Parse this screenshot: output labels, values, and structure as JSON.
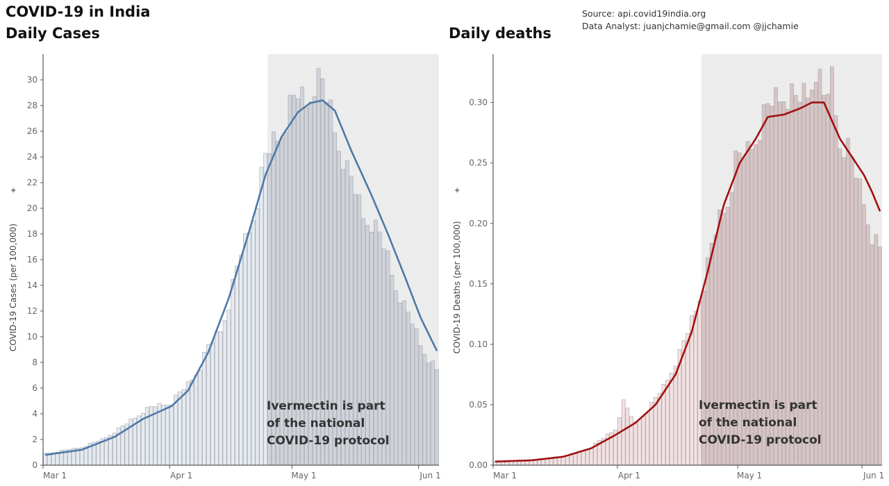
{
  "header": {
    "title_line1": "COVID-19 in India",
    "title_line2": "Daily Cases",
    "title_right": "Daily deaths",
    "source": "Source: api.covid19india.org",
    "analyst": "Data Analyst:  juanjchamie@gmail.com @jjchamie"
  },
  "chart_data": [
    {
      "type": "bar",
      "title": "Daily Cases",
      "ylabel": "COVID-19 Cases (per 100,000)",
      "ylim": [
        0,
        32
      ],
      "y_ticks": [
        0,
        2,
        4,
        6,
        8,
        10,
        12,
        14,
        16,
        18,
        20,
        22,
        24,
        26,
        28,
        30
      ],
      "x_start": "2021-03-01",
      "x_end": "2021-06-05",
      "x_ticks": [
        {
          "date": "2021-03-01",
          "label": "Mar 1"
        },
        {
          "date": "2021-04-01",
          "label": "Apr 1"
        },
        {
          "date": "2021-05-01",
          "label": "May 1"
        },
        {
          "date": "2021-06-01",
          "label": "Jun 1"
        }
      ],
      "highlight_range": [
        "2021-04-25",
        "2021-06-05"
      ],
      "annotation": [
        "Ivermectin is part",
        "of the national",
        "COVID-19 protocol"
      ],
      "bar_color": "#e6ebf2",
      "highlight_bar_color": "#d0d4da",
      "line_color": "#4e79a7",
      "series": [
        {
          "name": "Daily cases",
          "keypoints": [
            [
              "2021-03-01",
              0.9
            ],
            [
              "2021-03-05",
              1.1
            ],
            [
              "2021-03-10",
              1.4
            ],
            [
              "2021-03-15",
              2.0
            ],
            [
              "2021-03-20",
              3.0
            ],
            [
              "2021-03-25",
              4.2
            ],
            [
              "2021-03-28",
              4.6
            ],
            [
              "2021-04-01",
              4.9
            ],
            [
              "2021-04-05",
              6.3
            ],
            [
              "2021-04-08",
              7.7
            ],
            [
              "2021-04-10",
              9.2
            ],
            [
              "2021-04-13",
              10.6
            ],
            [
              "2021-04-15",
              12.6
            ],
            [
              "2021-04-18",
              16.5
            ],
            [
              "2021-04-20",
              18.5
            ],
            [
              "2021-04-22",
              20.8
            ],
            [
              "2021-04-24",
              23.8
            ],
            [
              "2021-04-26",
              25.2
            ],
            [
              "2021-04-28",
              26.3
            ],
            [
              "2021-04-30",
              27.7
            ],
            [
              "2021-05-02",
              28.8
            ],
            [
              "2021-05-04",
              28.4
            ],
            [
              "2021-05-06",
              29.9
            ],
            [
              "2021-05-08",
              29.5
            ],
            [
              "2021-05-10",
              27.6
            ],
            [
              "2021-05-12",
              25.2
            ],
            [
              "2021-05-14",
              22.8
            ],
            [
              "2021-05-16",
              21.3
            ],
            [
              "2021-05-18",
              19.6
            ],
            [
              "2021-05-20",
              18.9
            ],
            [
              "2021-05-22",
              17.8
            ],
            [
              "2021-05-24",
              16.2
            ],
            [
              "2021-05-26",
              14.0
            ],
            [
              "2021-05-28",
              12.3
            ],
            [
              "2021-05-30",
              11.1
            ],
            [
              "2021-06-01",
              9.5
            ],
            [
              "2021-06-03",
              8.3
            ],
            [
              "2021-06-05",
              7.3
            ]
          ]
        },
        {
          "name": "7-day average",
          "keypoints": [
            [
              "2021-03-01",
              0.8
            ],
            [
              "2021-03-10",
              1.2
            ],
            [
              "2021-03-18",
              2.2
            ],
            [
              "2021-03-25",
              3.6
            ],
            [
              "2021-04-01",
              4.6
            ],
            [
              "2021-04-05",
              5.8
            ],
            [
              "2021-04-10",
              8.8
            ],
            [
              "2021-04-15",
              13.0
            ],
            [
              "2021-04-20",
              18.2
            ],
            [
              "2021-04-24",
              22.6
            ],
            [
              "2021-04-28",
              25.6
            ],
            [
              "2021-05-02",
              27.5
            ],
            [
              "2021-05-05",
              28.2
            ],
            [
              "2021-05-08",
              28.4
            ],
            [
              "2021-05-11",
              27.6
            ],
            [
              "2021-05-15",
              24.5
            ],
            [
              "2021-05-20",
              21.0
            ],
            [
              "2021-05-24",
              18.0
            ],
            [
              "2021-05-28",
              14.8
            ],
            [
              "2021-06-01",
              11.5
            ],
            [
              "2021-06-05",
              8.9
            ]
          ]
        }
      ]
    },
    {
      "type": "bar",
      "title": "Daily deaths",
      "ylabel": "COVID-19 Deaths (per 100,000)",
      "ylim": [
        0,
        0.34
      ],
      "y_ticks": [
        0.0,
        0.05,
        0.1,
        0.15,
        0.2,
        0.25,
        0.3
      ],
      "y_tick_labels": [
        "0.00",
        "0.05",
        "0.10",
        "0.15",
        "0.20",
        "0.25",
        "0.30"
      ],
      "x_start": "2021-03-01",
      "x_end": "2021-06-05",
      "x_ticks": [
        {
          "date": "2021-03-01",
          "label": "Mar 1"
        },
        {
          "date": "2021-04-01",
          "label": "Apr 1"
        },
        {
          "date": "2021-05-01",
          "label": "May 1"
        },
        {
          "date": "2021-06-01",
          "label": "Jun 1"
        }
      ],
      "highlight_range": [
        "2021-04-22",
        "2021-06-05"
      ],
      "annotation": [
        "Ivermectin is part",
        "of the national",
        "COVID-19 protocol"
      ],
      "bar_color": "#f5e1e1",
      "highlight_bar_color": "#d9c4c4",
      "line_color": "#a01010",
      "series": [
        {
          "name": "Daily deaths",
          "keypoints": [
            [
              "2021-03-01",
              0.003
            ],
            [
              "2021-03-10",
              0.004
            ],
            [
              "2021-03-20",
              0.008
            ],
            [
              "2021-03-25",
              0.015
            ],
            [
              "2021-03-31",
              0.03
            ],
            [
              "2021-04-02",
              0.052
            ],
            [
              "2021-04-05",
              0.035
            ],
            [
              "2021-04-08",
              0.045
            ],
            [
              "2021-04-12",
              0.065
            ],
            [
              "2021-04-16",
              0.092
            ],
            [
              "2021-04-18",
              0.11
            ],
            [
              "2021-04-20",
              0.13
            ],
            [
              "2021-04-22",
              0.15
            ],
            [
              "2021-04-24",
              0.18
            ],
            [
              "2021-04-26",
              0.205
            ],
            [
              "2021-04-28",
              0.22
            ],
            [
              "2021-04-30",
              0.25
            ],
            [
              "2021-05-03",
              0.26
            ],
            [
              "2021-05-06",
              0.28
            ],
            [
              "2021-05-09",
              0.3
            ],
            [
              "2021-05-12",
              0.31
            ],
            [
              "2021-05-15",
              0.3
            ],
            [
              "2021-05-18",
              0.31
            ],
            [
              "2021-05-20",
              0.33
            ],
            [
              "2021-05-22",
              0.3
            ],
            [
              "2021-05-24",
              0.32
            ],
            [
              "2021-05-26",
              0.27
            ],
            [
              "2021-05-28",
              0.26
            ],
            [
              "2021-05-30",
              0.24
            ],
            [
              "2021-06-01",
              0.22
            ],
            [
              "2021-06-03",
              0.19
            ],
            [
              "2021-06-05",
              0.177
            ]
          ]
        },
        {
          "name": "7-day average",
          "keypoints": [
            [
              "2021-03-01",
              0.003
            ],
            [
              "2021-03-10",
              0.004
            ],
            [
              "2021-03-18",
              0.007
            ],
            [
              "2021-03-25",
              0.014
            ],
            [
              "2021-03-31",
              0.025
            ],
            [
              "2021-04-05",
              0.035
            ],
            [
              "2021-04-10",
              0.05
            ],
            [
              "2021-04-15",
              0.075
            ],
            [
              "2021-04-19",
              0.11
            ],
            [
              "2021-04-23",
              0.16
            ],
            [
              "2021-04-27",
              0.215
            ],
            [
              "2021-05-01",
              0.25
            ],
            [
              "2021-05-05",
              0.27
            ],
            [
              "2021-05-08",
              0.288
            ],
            [
              "2021-05-12",
              0.29
            ],
            [
              "2021-05-16",
              0.295
            ],
            [
              "2021-05-19",
              0.3
            ],
            [
              "2021-05-22",
              0.3
            ],
            [
              "2021-05-26",
              0.27
            ],
            [
              "2021-05-30",
              0.25
            ],
            [
              "2021-06-01",
              0.24
            ],
            [
              "2021-06-03",
              0.226
            ],
            [
              "2021-06-05",
              0.21
            ]
          ]
        }
      ]
    }
  ]
}
